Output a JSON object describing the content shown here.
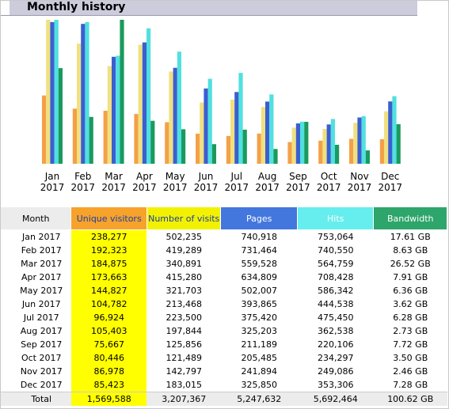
{
  "section_title": "Monthly history",
  "colors": {
    "visitors": "#f4a048",
    "visits": "#f0e080",
    "pages": "#3b5fd0",
    "hits": "#50e0e0",
    "bandwidth": "#1a9a5e"
  },
  "columns": {
    "month": "Month",
    "unique_visitors": "Unique visitors",
    "visits": "Number of visits",
    "pages": "Pages",
    "hits": "Hits",
    "bandwidth": "Bandwidth"
  },
  "chart_data": {
    "type": "bar",
    "categories": [
      "Jan",
      "Feb",
      "Mar",
      "Apr",
      "May",
      "Jun",
      "Jul",
      "Aug",
      "Sep",
      "Oct",
      "Nov",
      "Dec"
    ],
    "years": [
      "2017",
      "2017",
      "2017",
      "2017",
      "2017",
      "2017",
      "2017",
      "2017",
      "2017",
      "2017",
      "2017",
      "2017"
    ],
    "series": [
      {
        "values": [
          238277,
          192323,
          184875,
          173663,
          144827,
          104782,
          96924,
          105403,
          75667,
          80446,
          86978,
          85423
        ]
      },
      {
        "values": [
          502235,
          419289,
          340891,
          415280,
          321703,
          213468,
          223500,
          197844,
          125856,
          121489,
          142797,
          183015
        ]
      },
      {
        "values": [
          740918,
          731464,
          559528,
          634809,
          502007,
          393865,
          375420,
          325203,
          211189,
          205485,
          241894,
          325850
        ]
      },
      {
        "values": [
          753064,
          740550,
          564759,
          708428,
          586342,
          444538,
          475450,
          362538,
          220106,
          234297,
          249086,
          353306
        ]
      },
      {
        "values": [
          17.61,
          8.63,
          26.52,
          7.91,
          6.36,
          3.62,
          6.28,
          2.73,
          7.72,
          3.5,
          2.46,
          7.28
        ]
      }
    ],
    "title": "",
    "xlabel": "",
    "ylabel": "",
    "grid": false,
    "legend": "none"
  },
  "rows": [
    {
      "month": "Jan 2017",
      "uv": "238,277",
      "visits": "502,235",
      "pages": "740,918",
      "hits": "753,064",
      "bw": "17.61 GB"
    },
    {
      "month": "Feb 2017",
      "uv": "192,323",
      "visits": "419,289",
      "pages": "731,464",
      "hits": "740,550",
      "bw": "8.63 GB"
    },
    {
      "month": "Mar 2017",
      "uv": "184,875",
      "visits": "340,891",
      "pages": "559,528",
      "hits": "564,759",
      "bw": "26.52 GB"
    },
    {
      "month": "Apr 2017",
      "uv": "173,663",
      "visits": "415,280",
      "pages": "634,809",
      "hits": "708,428",
      "bw": "7.91 GB"
    },
    {
      "month": "May 2017",
      "uv": "144,827",
      "visits": "321,703",
      "pages": "502,007",
      "hits": "586,342",
      "bw": "6.36 GB"
    },
    {
      "month": "Jun 2017",
      "uv": "104,782",
      "visits": "213,468",
      "pages": "393,865",
      "hits": "444,538",
      "bw": "3.62 GB"
    },
    {
      "month": "Jul 2017",
      "uv": "96,924",
      "visits": "223,500",
      "pages": "375,420",
      "hits": "475,450",
      "bw": "6.28 GB"
    },
    {
      "month": "Aug 2017",
      "uv": "105,403",
      "visits": "197,844",
      "pages": "325,203",
      "hits": "362,538",
      "bw": "2.73 GB"
    },
    {
      "month": "Sep 2017",
      "uv": "75,667",
      "visits": "125,856",
      "pages": "211,189",
      "hits": "220,106",
      "bw": "7.72 GB"
    },
    {
      "month": "Oct 2017",
      "uv": "80,446",
      "visits": "121,489",
      "pages": "205,485",
      "hits": "234,297",
      "bw": "3.50 GB"
    },
    {
      "month": "Nov 2017",
      "uv": "86,978",
      "visits": "142,797",
      "pages": "241,894",
      "hits": "249,086",
      "bw": "2.46 GB"
    },
    {
      "month": "Dec 2017",
      "uv": "85,423",
      "visits": "183,015",
      "pages": "325,850",
      "hits": "353,306",
      "bw": "7.28 GB"
    }
  ],
  "total": {
    "month": "Total",
    "uv": "1,569,588",
    "visits": "3,207,367",
    "pages": "5,247,632",
    "hits": "5,692,464",
    "bw": "100.62 GB"
  }
}
